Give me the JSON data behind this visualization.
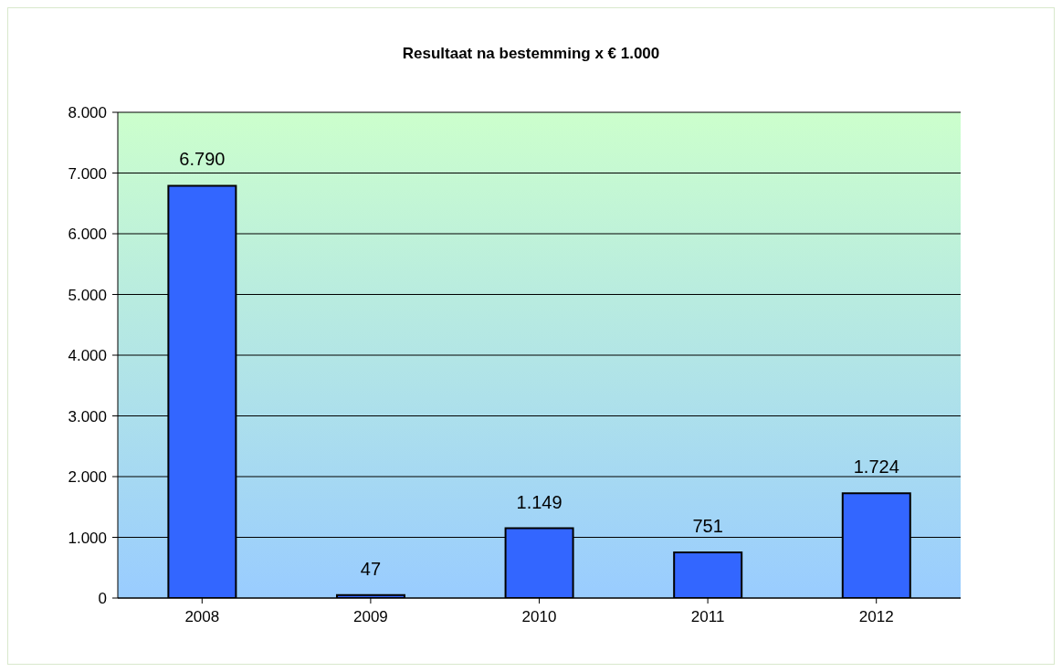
{
  "chart_data": {
    "type": "bar",
    "title": "Resultaat na bestemming x € 1.000",
    "categories": [
      "2008",
      "2009",
      "2010",
      "2011",
      "2012"
    ],
    "values": [
      6790,
      47,
      1149,
      751,
      1724
    ],
    "value_labels": [
      "6.790",
      "47",
      "1.149",
      "751",
      "1.724"
    ],
    "color": "#3366ff",
    "ylim": [
      0,
      8000
    ],
    "yticks": [
      {
        "value": 0,
        "label": "0"
      },
      {
        "value": 1000,
        "label": "1.000"
      },
      {
        "value": 2000,
        "label": "2.000"
      },
      {
        "value": 3000,
        "label": "3.000"
      },
      {
        "value": 4000,
        "label": "4.000"
      },
      {
        "value": 5000,
        "label": "5.000"
      },
      {
        "value": 6000,
        "label": "6.000"
      },
      {
        "value": 7000,
        "label": "7.000"
      },
      {
        "value": 8000,
        "label": "8.000"
      }
    ],
    "grid": "y"
  }
}
